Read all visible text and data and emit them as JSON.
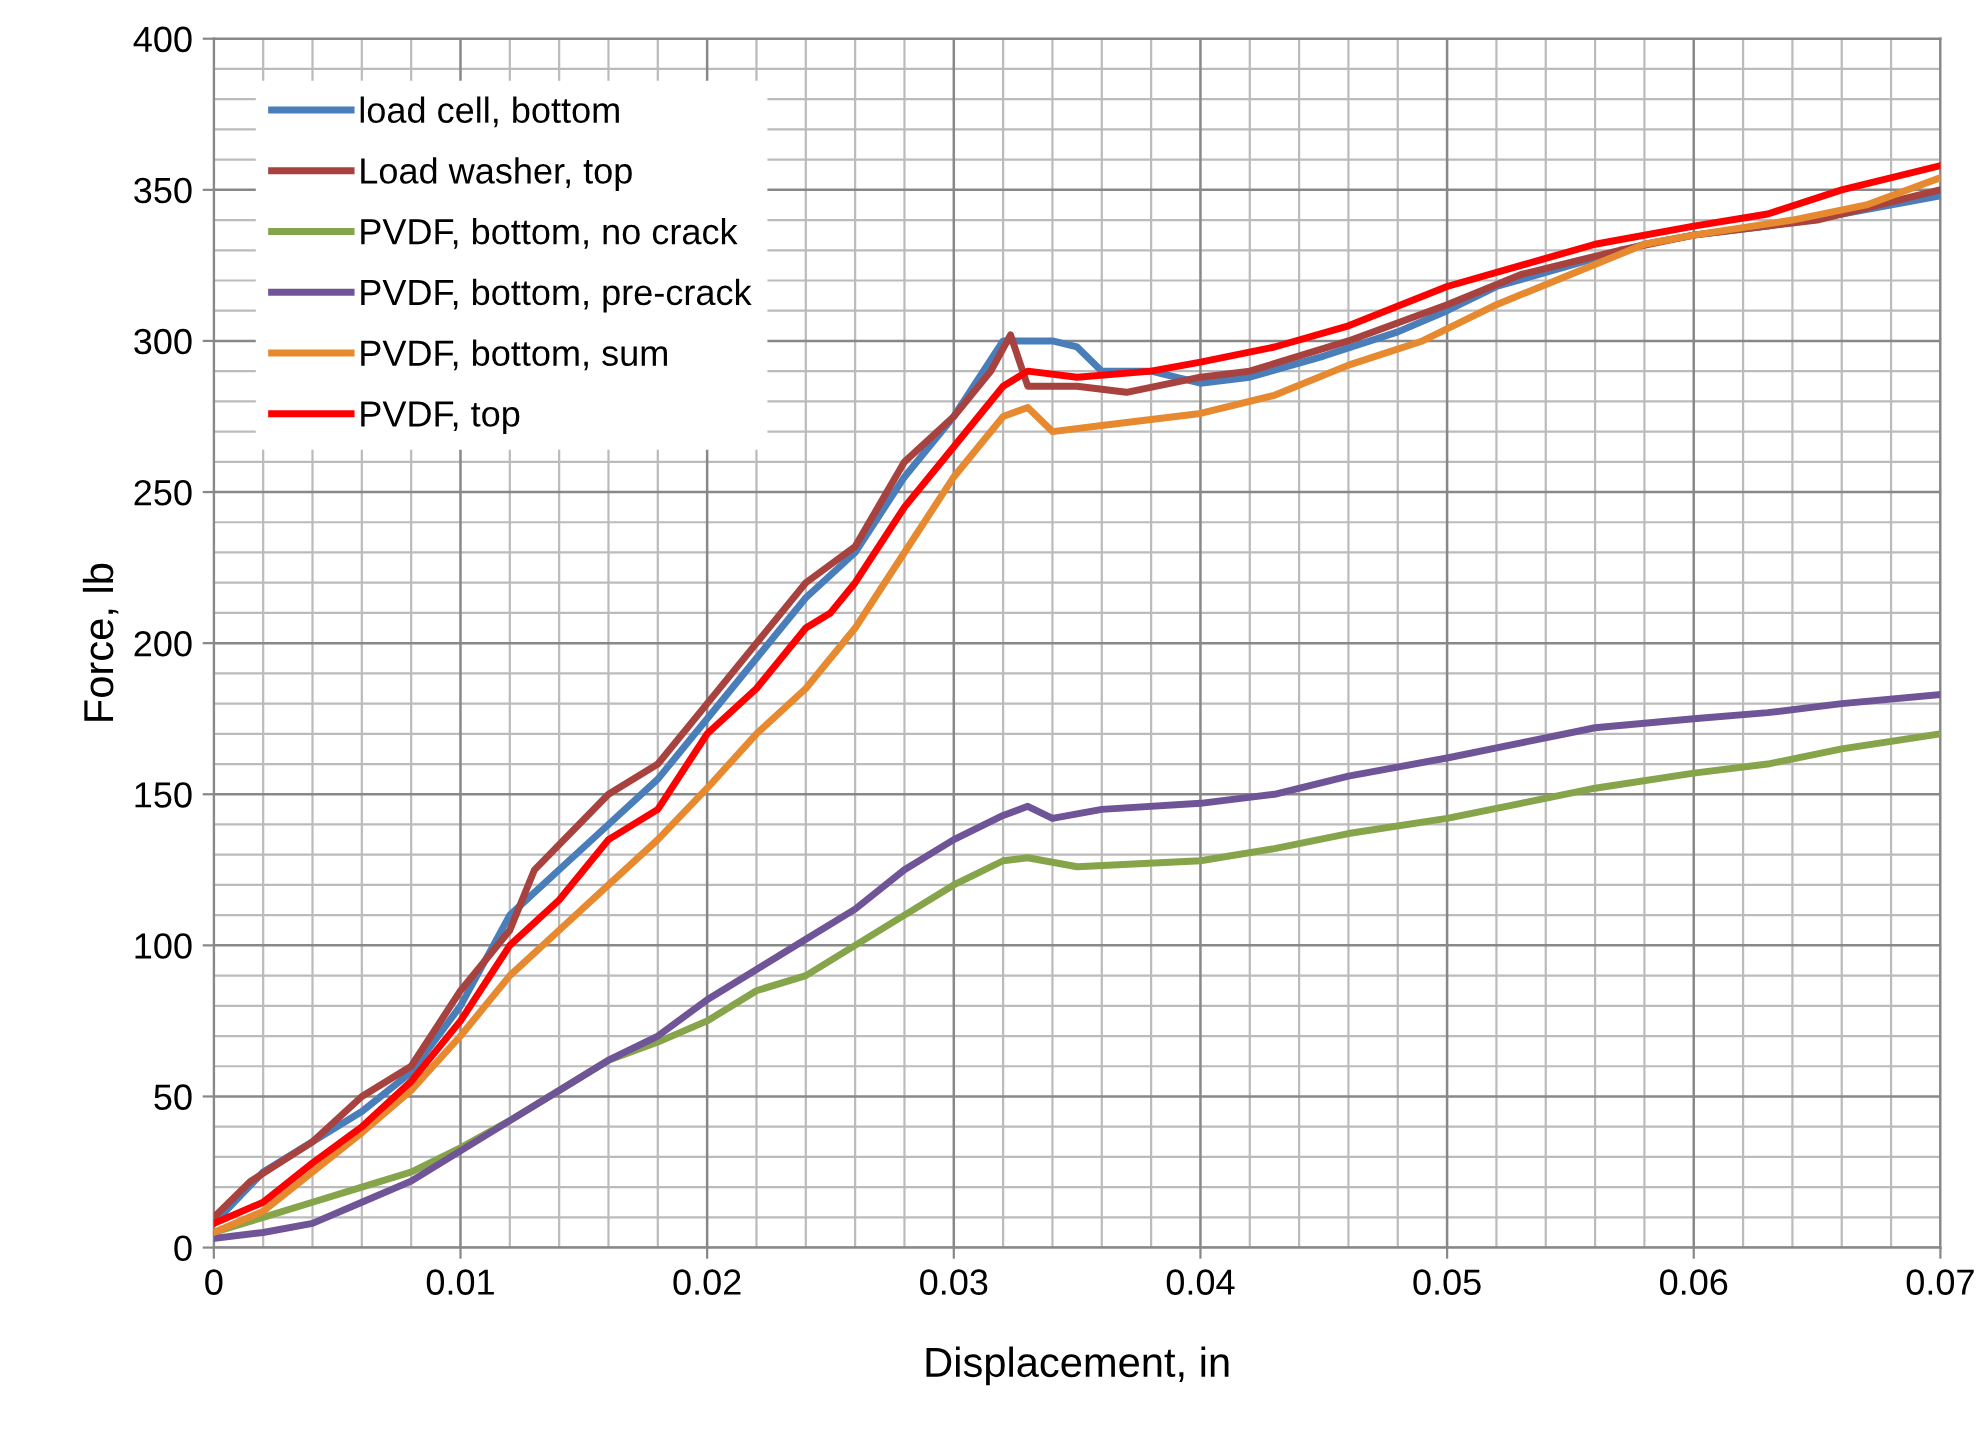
{
  "chart_data": {
    "type": "line",
    "xlabel": "Displacement, in",
    "ylabel": "Force, lb",
    "xlim": [
      0,
      0.07
    ],
    "xticks": [
      0,
      0.01,
      0.02,
      0.03,
      0.04,
      0.05,
      0.06,
      0.07
    ],
    "ylim": [
      0,
      400
    ],
    "yticks": [
      0,
      50,
      100,
      150,
      200,
      250,
      300,
      350,
      400
    ],
    "grid": true,
    "legend": "top left",
    "marker": "none",
    "line_style": "solid",
    "series": [
      {
        "name": "load cell, bottom",
        "color": "#4a7ebb",
        "x": [
          0,
          0.002,
          0.004,
          0.006,
          0.008,
          0.01,
          0.012,
          0.014,
          0.016,
          0.018,
          0.02,
          0.022,
          0.024,
          0.026,
          0.028,
          0.03,
          0.032,
          0.034,
          0.035,
          0.036,
          0.038,
          0.04,
          0.042,
          0.045,
          0.048,
          0.05,
          0.052,
          0.055,
          0.058,
          0.06,
          0.063,
          0.066,
          0.07
        ],
        "values": [
          8,
          25,
          35,
          45,
          58,
          80,
          110,
          125,
          140,
          155,
          175,
          195,
          215,
          230,
          255,
          275,
          300,
          300,
          298,
          290,
          290,
          286,
          288,
          295,
          303,
          310,
          318,
          325,
          332,
          335,
          338,
          342,
          348
        ]
      },
      {
        "name": "Load washer, top",
        "color": "#a8423f",
        "x": [
          0,
          0.0015,
          0.004,
          0.006,
          0.008,
          0.01,
          0.012,
          0.013,
          0.016,
          0.018,
          0.02,
          0.022,
          0.024,
          0.026,
          0.028,
          0.03,
          0.0315,
          0.0323,
          0.033,
          0.035,
          0.037,
          0.04,
          0.042,
          0.046,
          0.05,
          0.053,
          0.057,
          0.06,
          0.065,
          0.07
        ],
        "values": [
          10,
          22,
          35,
          50,
          60,
          85,
          105,
          125,
          150,
          160,
          180,
          200,
          220,
          232,
          260,
          275,
          290,
          302,
          285,
          285,
          283,
          288,
          290,
          300,
          312,
          322,
          330,
          335,
          340,
          350
        ]
      },
      {
        "name": "PVDF, bottom, no crack",
        "color": "#86a44a",
        "x": [
          0,
          0.002,
          0.004,
          0.006,
          0.008,
          0.01,
          0.012,
          0.014,
          0.016,
          0.018,
          0.02,
          0.022,
          0.024,
          0.026,
          0.028,
          0.03,
          0.032,
          0.033,
          0.035,
          0.04,
          0.043,
          0.046,
          0.05,
          0.053,
          0.056,
          0.06,
          0.063,
          0.066,
          0.07
        ],
        "values": [
          5,
          10,
          15,
          20,
          25,
          33,
          42,
          52,
          62,
          68,
          75,
          85,
          90,
          100,
          110,
          120,
          128,
          129,
          126,
          128,
          132,
          137,
          142,
          147,
          152,
          157,
          160,
          165,
          170
        ]
      },
      {
        "name": "PVDF, bottom, pre-crack",
        "color": "#6f5597",
        "x": [
          0,
          0.002,
          0.004,
          0.006,
          0.008,
          0.01,
          0.012,
          0.014,
          0.016,
          0.018,
          0.02,
          0.022,
          0.024,
          0.026,
          0.028,
          0.03,
          0.032,
          0.033,
          0.034,
          0.036,
          0.04,
          0.043,
          0.046,
          0.05,
          0.053,
          0.056,
          0.06,
          0.063,
          0.066,
          0.07
        ],
        "values": [
          3,
          5,
          8,
          15,
          22,
          32,
          42,
          52,
          62,
          70,
          82,
          92,
          102,
          112,
          125,
          135,
          143,
          146,
          142,
          145,
          147,
          150,
          156,
          162,
          167,
          172,
          175,
          177,
          180,
          183
        ]
      },
      {
        "name": "PVDF, bottom, sum",
        "color": "#e6892f",
        "x": [
          0,
          0.002,
          0.004,
          0.006,
          0.008,
          0.01,
          0.012,
          0.014,
          0.016,
          0.018,
          0.02,
          0.022,
          0.024,
          0.026,
          0.028,
          0.03,
          0.032,
          0.033,
          0.034,
          0.036,
          0.04,
          0.043,
          0.046,
          0.049,
          0.052,
          0.055,
          0.058,
          0.06,
          0.064,
          0.067,
          0.07
        ],
        "values": [
          5,
          12,
          25,
          38,
          52,
          70,
          90,
          105,
          120,
          135,
          152,
          170,
          185,
          205,
          230,
          255,
          275,
          278,
          270,
          272,
          276,
          282,
          292,
          300,
          312,
          322,
          332,
          335,
          340,
          345,
          354
        ]
      },
      {
        "name": "PVDF, top",
        "color": "#ff0000",
        "x": [
          0,
          0.002,
          0.004,
          0.006,
          0.008,
          0.01,
          0.012,
          0.014,
          0.016,
          0.018,
          0.02,
          0.022,
          0.024,
          0.025,
          0.026,
          0.028,
          0.03,
          0.032,
          0.033,
          0.035,
          0.038,
          0.04,
          0.043,
          0.046,
          0.05,
          0.053,
          0.056,
          0.06,
          0.063,
          0.066,
          0.07
        ],
        "values": [
          8,
          15,
          28,
          40,
          55,
          75,
          100,
          115,
          135,
          145,
          170,
          185,
          205,
          210,
          220,
          245,
          265,
          285,
          290,
          288,
          290,
          293,
          298,
          305,
          318,
          325,
          332,
          338,
          342,
          350,
          358
        ]
      }
    ]
  }
}
